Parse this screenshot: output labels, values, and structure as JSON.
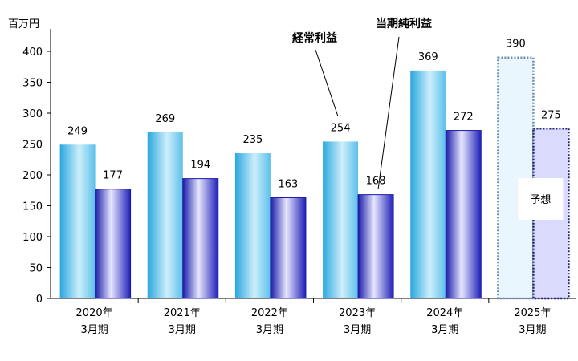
{
  "chart_data": {
    "type": "bar",
    "unit_label": "百万円",
    "ylim": [
      0,
      400
    ],
    "yticks": [
      0,
      50,
      100,
      150,
      200,
      250,
      300,
      350,
      400
    ],
    "categories": [
      [
        "2020年",
        "3月期"
      ],
      [
        "2021年",
        "3月期"
      ],
      [
        "2022年",
        "3月期"
      ],
      [
        "2023年",
        "3月期"
      ],
      [
        "2024年",
        "3月期"
      ],
      [
        "2025年",
        "3月期"
      ]
    ],
    "series": [
      {
        "name": "経常利益",
        "values": [
          249,
          269,
          235,
          254,
          369,
          390
        ],
        "color": "#29a8e0"
      },
      {
        "name": "当期純利益",
        "values": [
          177,
          194,
          163,
          168,
          272,
          275
        ],
        "color": "#1a1aa8"
      }
    ],
    "forecast_index": 5,
    "forecast_label": "予想",
    "grid": false,
    "legend": "none"
  }
}
